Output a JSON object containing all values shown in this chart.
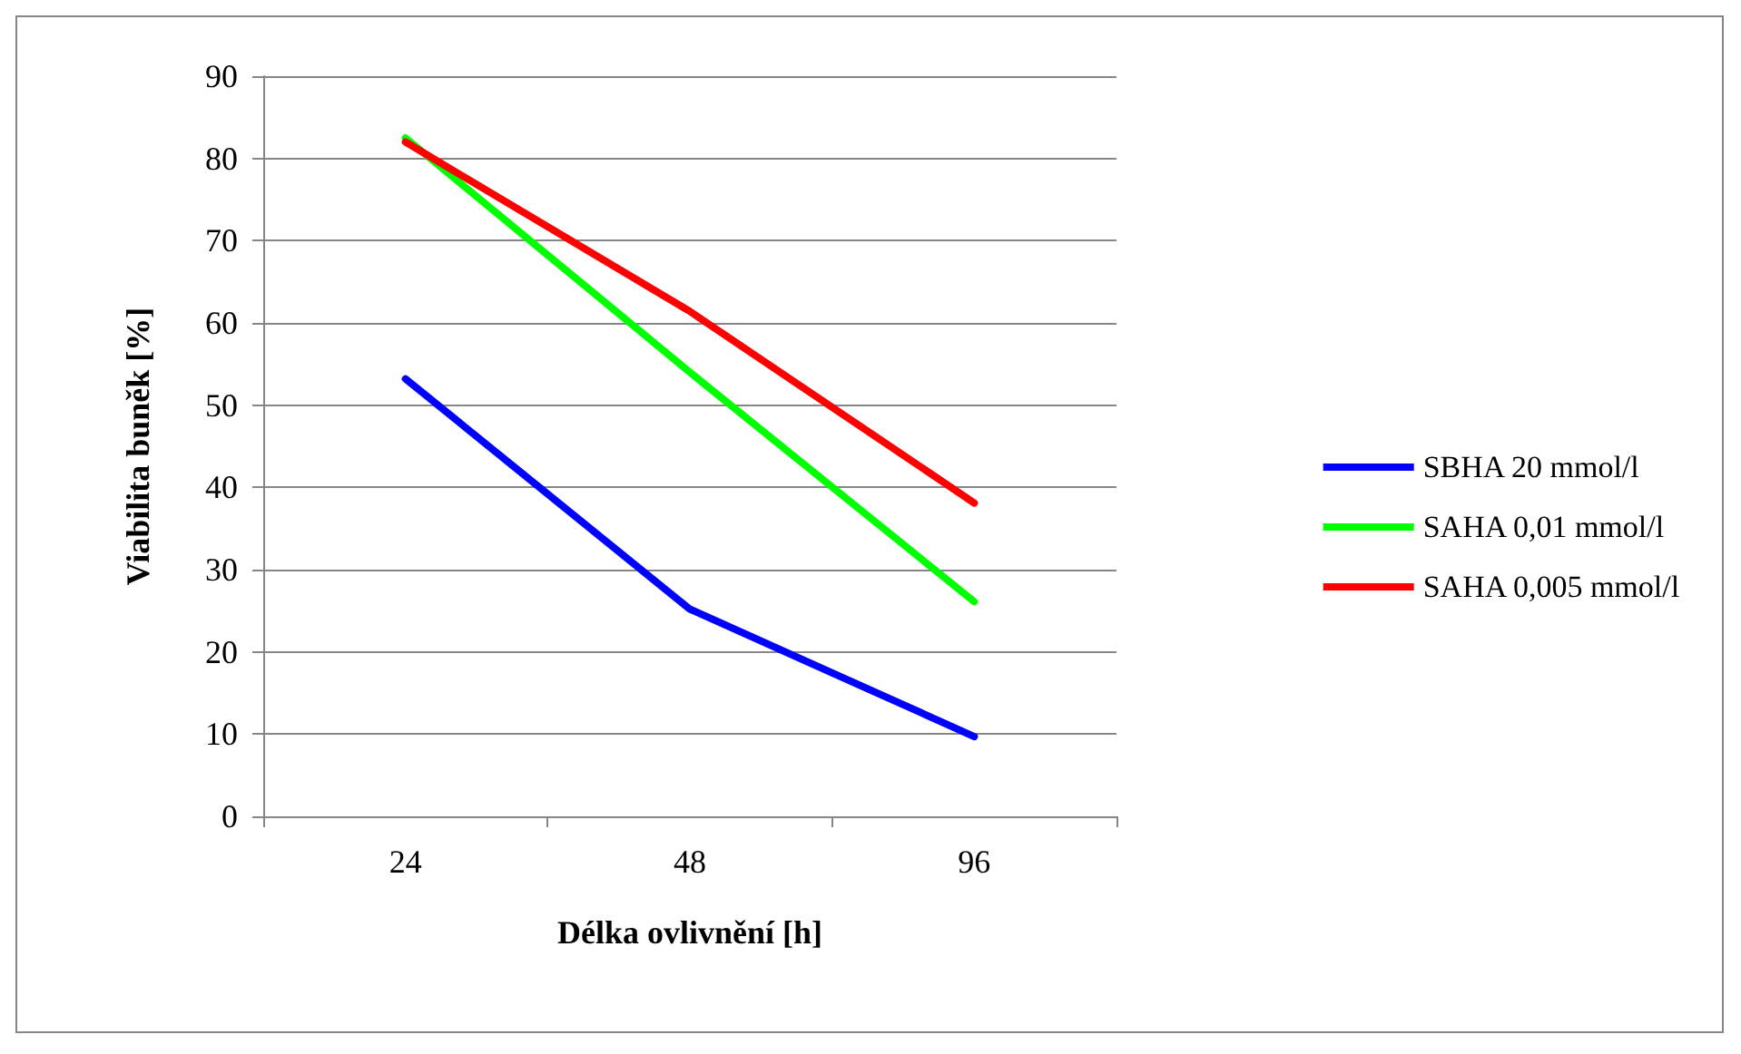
{
  "chart_data": {
    "type": "line",
    "xlabel": "Délka ovlivnění [h]",
    "ylabel": "Viabilita buněk [%]",
    "categories": [
      "24",
      "48",
      "96"
    ],
    "series": [
      {
        "name": "SBHA 20 mmol/l",
        "color": "#0000ff",
        "values": [
          53.2,
          25.2,
          9.7
        ]
      },
      {
        "name": "SAHA 0,01 mmol/l",
        "color": "#00ff00",
        "values": [
          82.5,
          54,
          26.1
        ]
      },
      {
        "name": "SAHA 0,005 mmol/l",
        "color": "#ff0000",
        "values": [
          82,
          61.4,
          38.1
        ]
      }
    ],
    "ylim": [
      0,
      90
    ],
    "yticks": [
      0,
      10,
      20,
      30,
      40,
      50,
      60,
      70,
      80,
      90
    ],
    "grid": "y",
    "legend": "right",
    "marker": "none",
    "line_style": "solid"
  }
}
